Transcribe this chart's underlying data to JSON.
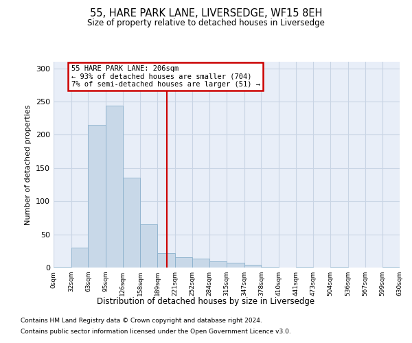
{
  "title": "55, HARE PARK LANE, LIVERSEDGE, WF15 8EH",
  "subtitle": "Size of property relative to detached houses in Liversedge",
  "xlabel": "Distribution of detached houses by size in Liversedge",
  "ylabel": "Number of detached properties",
  "footer_line1": "Contains HM Land Registry data © Crown copyright and database right 2024.",
  "footer_line2": "Contains public sector information licensed under the Open Government Licence v3.0.",
  "bin_edges": [
    0,
    32,
    63,
    95,
    126,
    158,
    189,
    221,
    252,
    284,
    315,
    347,
    378,
    410,
    441,
    473,
    504,
    536,
    567,
    599,
    630
  ],
  "bar_heights": [
    1,
    30,
    215,
    244,
    135,
    65,
    22,
    16,
    13,
    9,
    7,
    4,
    1,
    0,
    1,
    0,
    1,
    0,
    0,
    1
  ],
  "bar_color": "#c8d8e8",
  "bar_edge_color": "#8ab0cc",
  "grid_color": "#c8d4e4",
  "bg_color": "#e8eef8",
  "vline_x": 206,
  "vline_color": "#cc0000",
  "annotation_text": "55 HARE PARK LANE: 206sqm\n← 93% of detached houses are smaller (704)\n7% of semi-detached houses are larger (51) →",
  "annotation_box_color": "#cc0000",
  "ylim": [
    0,
    310
  ],
  "yticks": [
    0,
    50,
    100,
    150,
    200,
    250,
    300
  ],
  "tick_labels": [
    "0sqm",
    "32sqm",
    "63sqm",
    "95sqm",
    "126sqm",
    "158sqm",
    "189sqm",
    "221sqm",
    "252sqm",
    "284sqm",
    "315sqm",
    "347sqm",
    "378sqm",
    "410sqm",
    "441sqm",
    "473sqm",
    "504sqm",
    "536sqm",
    "567sqm",
    "599sqm",
    "630sqm"
  ],
  "xlim": [
    0,
    630
  ]
}
